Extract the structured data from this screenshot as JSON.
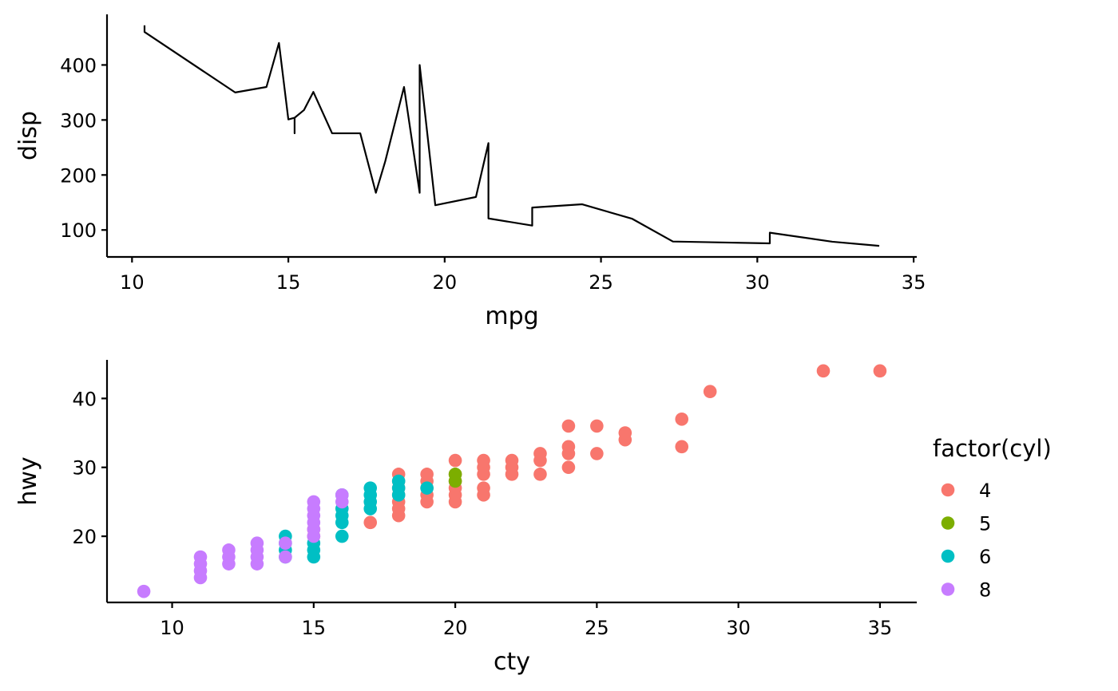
{
  "chart_data": [
    {
      "type": "line",
      "title": "",
      "xlabel": "mpg",
      "ylabel": "disp",
      "xlim": [
        9.2,
        35.1
      ],
      "ylim": [
        51,
        492
      ],
      "x_ticks": [
        10,
        15,
        20,
        25,
        30,
        35
      ],
      "y_ticks": [
        100,
        200,
        300,
        400
      ],
      "x_tick_labels": [
        "10",
        "15",
        "20",
        "25",
        "30",
        "35"
      ],
      "y_tick_labels": [
        "100",
        "200",
        "300",
        "400"
      ],
      "grid": false,
      "legend": "none",
      "line_color": "#000000",
      "points": [
        [
          10.4,
          472
        ],
        [
          10.4,
          460
        ],
        [
          13.3,
          350
        ],
        [
          14.3,
          360
        ],
        [
          14.7,
          440
        ],
        [
          15.0,
          301
        ],
        [
          15.2,
          304
        ],
        [
          15.2,
          275.8
        ],
        [
          15.2,
          304
        ],
        [
          15.5,
          318
        ],
        [
          15.8,
          351
        ],
        [
          16.4,
          275.8
        ],
        [
          17.3,
          275.8
        ],
        [
          17.8,
          167.6
        ],
        [
          18.1,
          225
        ],
        [
          18.7,
          360
        ],
        [
          19.2,
          167.6
        ],
        [
          19.2,
          400
        ],
        [
          19.7,
          145
        ],
        [
          21.0,
          160
        ],
        [
          21.4,
          258
        ],
        [
          21.4,
          121
        ],
        [
          22.8,
          108
        ],
        [
          22.8,
          140.8
        ],
        [
          24.4,
          146.7
        ],
        [
          26.0,
          120.3
        ],
        [
          27.3,
          79
        ],
        [
          30.4,
          75.7
        ],
        [
          30.4,
          95.1
        ],
        [
          32.4,
          78.7
        ],
        [
          33.9,
          71.1
        ]
      ]
    },
    {
      "type": "scatter",
      "title": "",
      "xlabel": "cty",
      "ylabel": "hwy",
      "xlim": [
        7.7,
        36.3
      ],
      "ylim": [
        10.4,
        45.6
      ],
      "x_ticks": [
        10,
        15,
        20,
        25,
        30,
        35
      ],
      "y_ticks": [
        20,
        30,
        40
      ],
      "x_tick_labels": [
        "10",
        "15",
        "20",
        "25",
        "30",
        "35"
      ],
      "y_tick_labels": [
        "20",
        "30",
        "40"
      ],
      "grid": false,
      "legend": "right",
      "legend_title": "factor(cyl)",
      "series": [
        {
          "name": "4",
          "color": "#F8766D",
          "points": [
            [
              15,
              20
            ],
            [
              15,
              21
            ],
            [
              17,
              22
            ],
            [
              18,
              23
            ],
            [
              18,
              24
            ],
            [
              18,
              25
            ],
            [
              18,
              26
            ],
            [
              18,
              27
            ],
            [
              18,
              28
            ],
            [
              18,
              29
            ],
            [
              19,
              25
            ],
            [
              19,
              26
            ],
            [
              19,
              27
            ],
            [
              19,
              28
            ],
            [
              19,
              29
            ],
            [
              20,
              25
            ],
            [
              20,
              26
            ],
            [
              20,
              27
            ],
            [
              20,
              28
            ],
            [
              20,
              29
            ],
            [
              20,
              31
            ],
            [
              21,
              26
            ],
            [
              21,
              27
            ],
            [
              21,
              29
            ],
            [
              21,
              30
            ],
            [
              21,
              31
            ],
            [
              22,
              29
            ],
            [
              22,
              30
            ],
            [
              22,
              31
            ],
            [
              23,
              29
            ],
            [
              23,
              31
            ],
            [
              23,
              32
            ],
            [
              24,
              30
            ],
            [
              24,
              32
            ],
            [
              24,
              33
            ],
            [
              24,
              36
            ],
            [
              25,
              32
            ],
            [
              25,
              36
            ],
            [
              26,
              34
            ],
            [
              26,
              35
            ],
            [
              28,
              33
            ],
            [
              28,
              37
            ],
            [
              29,
              41
            ],
            [
              33,
              44
            ],
            [
              35,
              44
            ]
          ]
        },
        {
          "name": "5",
          "color": "#7CAE00",
          "points": [
            [
              20,
              28
            ],
            [
              20,
              29
            ]
          ]
        },
        {
          "name": "6",
          "color": "#00BFC4",
          "points": [
            [
              14,
              17
            ],
            [
              14,
              18
            ],
            [
              14,
              19
            ],
            [
              14,
              20
            ],
            [
              15,
              17
            ],
            [
              15,
              18
            ],
            [
              15,
              19
            ],
            [
              16,
              20
            ],
            [
              16,
              22
            ],
            [
              16,
              23
            ],
            [
              16,
              24
            ],
            [
              16,
              26
            ],
            [
              17,
              24
            ],
            [
              17,
              25
            ],
            [
              17,
              26
            ],
            [
              17,
              27
            ],
            [
              18,
              26
            ],
            [
              18,
              27
            ],
            [
              18,
              28
            ],
            [
              19,
              27
            ]
          ]
        },
        {
          "name": "8",
          "color": "#C77CFF",
          "points": [
            [
              9,
              12
            ],
            [
              11,
              14
            ],
            [
              11,
              15
            ],
            [
              11,
              16
            ],
            [
              11,
              17
            ],
            [
              12,
              16
            ],
            [
              12,
              17
            ],
            [
              12,
              18
            ],
            [
              13,
              16
            ],
            [
              13,
              17
            ],
            [
              13,
              18
            ],
            [
              13,
              19
            ],
            [
              14,
              17
            ],
            [
              14,
              19
            ],
            [
              15,
              20
            ],
            [
              15,
              21
            ],
            [
              15,
              22
            ],
            [
              15,
              23
            ],
            [
              15,
              24
            ],
            [
              15,
              25
            ],
            [
              16,
              25
            ],
            [
              16,
              26
            ]
          ]
        }
      ]
    }
  ]
}
